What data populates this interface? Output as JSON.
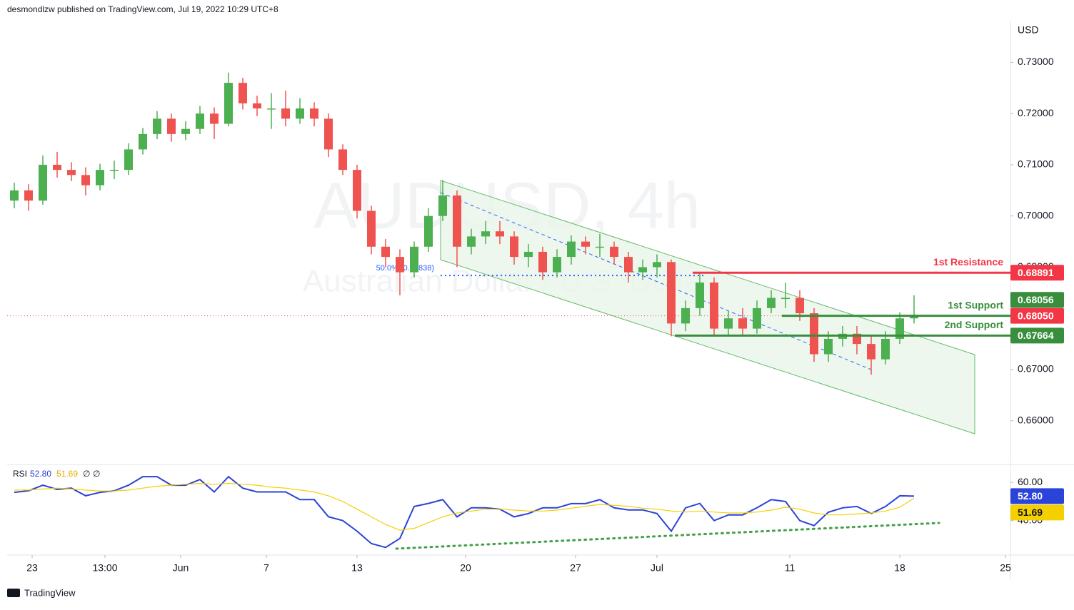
{
  "header": {
    "text": "desmondlzw published on TradingView.com, Jul 19, 2022 10:29 UTC+8"
  },
  "footer": {
    "brand": "TradingView"
  },
  "chart_data": [
    {
      "type": "candlestick",
      "title": "AUDUSD, 4h",
      "subtitle": "Australian Dollar / U.S. Dollar",
      "y_label": "USD",
      "up_color": "#4caf50",
      "down_color": "#ef5350",
      "open": [
        0.703,
        0.705,
        0.703,
        0.71,
        0.709,
        0.708,
        0.706,
        0.709,
        0.709,
        0.713,
        0.716,
        0.719,
        0.716,
        0.717,
        0.72,
        0.718,
        0.726,
        0.722,
        0.721,
        0.721,
        0.719,
        0.721,
        0.719,
        0.713,
        0.709,
        0.701,
        0.694,
        0.692,
        0.689,
        0.694,
        0.7,
        0.704,
        0.694,
        0.696,
        0.697,
        0.696,
        0.692,
        0.693,
        0.689,
        0.692,
        0.695,
        0.694,
        0.694,
        0.692,
        0.689,
        0.69,
        0.691,
        0.679,
        0.682,
        0.687,
        0.678,
        0.68,
        0.678,
        0.682,
        0.684,
        0.684,
        0.681,
        0.673,
        0.676,
        0.677,
        0.675,
        0.672,
        0.676,
        0.68
      ],
      "high": [
        0.7065,
        0.7062,
        0.7118,
        0.7125,
        0.7105,
        0.7095,
        0.7102,
        0.7108,
        0.7142,
        0.7172,
        0.7205,
        0.72,
        0.7185,
        0.7215,
        0.7212,
        0.728,
        0.727,
        0.7235,
        0.724,
        0.7245,
        0.723,
        0.7222,
        0.72,
        0.714,
        0.71,
        0.702,
        0.6955,
        0.6935,
        0.695,
        0.7015,
        0.707,
        0.705,
        0.6975,
        0.699,
        0.699,
        0.697,
        0.6945,
        0.694,
        0.6935,
        0.6962,
        0.696,
        0.6965,
        0.695,
        0.693,
        0.6915,
        0.6925,
        0.6915,
        0.6835,
        0.689,
        0.688,
        0.6815,
        0.682,
        0.6835,
        0.6855,
        0.687,
        0.6855,
        0.682,
        0.6775,
        0.6785,
        0.6785,
        0.6765,
        0.6775,
        0.6812,
        0.6845
      ],
      "low": [
        0.7015,
        0.701,
        0.7022,
        0.7075,
        0.7068,
        0.704,
        0.705,
        0.7072,
        0.708,
        0.712,
        0.715,
        0.7145,
        0.7148,
        0.716,
        0.715,
        0.7175,
        0.7208,
        0.7195,
        0.717,
        0.7175,
        0.718,
        0.7175,
        0.7115,
        0.708,
        0.6995,
        0.6925,
        0.69,
        0.6845,
        0.688,
        0.693,
        0.699,
        0.69,
        0.6925,
        0.6945,
        0.6945,
        0.6905,
        0.69,
        0.6875,
        0.688,
        0.6905,
        0.6925,
        0.692,
        0.6905,
        0.687,
        0.6875,
        0.688,
        0.6765,
        0.6775,
        0.6805,
        0.6765,
        0.6765,
        0.6765,
        0.677,
        0.681,
        0.682,
        0.6795,
        0.6715,
        0.6715,
        0.6745,
        0.673,
        0.669,
        0.671,
        0.675,
        0.679
      ],
      "close": [
        0.705,
        0.703,
        0.71,
        0.709,
        0.708,
        0.706,
        0.709,
        0.709,
        0.713,
        0.716,
        0.719,
        0.716,
        0.717,
        0.72,
        0.718,
        0.726,
        0.722,
        0.721,
        0.721,
        0.719,
        0.721,
        0.719,
        0.713,
        0.709,
        0.701,
        0.694,
        0.692,
        0.689,
        0.694,
        0.7,
        0.704,
        0.694,
        0.696,
        0.697,
        0.696,
        0.692,
        0.693,
        0.689,
        0.692,
        0.695,
        0.694,
        0.694,
        0.692,
        0.689,
        0.69,
        0.691,
        0.679,
        0.682,
        0.687,
        0.678,
        0.68,
        0.678,
        0.682,
        0.684,
        0.684,
        0.681,
        0.673,
        0.676,
        0.677,
        0.675,
        0.672,
        0.676,
        0.68,
        0.6805
      ],
      "xlim": [
        -0.5,
        69.75
      ],
      "xticks": [
        {
          "value": 1.25,
          "label": "23"
        },
        {
          "value": 6.35,
          "label": "13:00"
        },
        {
          "value": 11.65,
          "label": "Jun"
        },
        {
          "value": 17.65,
          "label": "7"
        },
        {
          "value": 24,
          "label": "13"
        },
        {
          "value": 31.6,
          "label": "20"
        },
        {
          "value": 39.3,
          "label": "27"
        },
        {
          "value": 45,
          "label": "Jul"
        },
        {
          "value": 54.3,
          "label": "11"
        },
        {
          "value": 62,
          "label": "18"
        },
        {
          "value": 69.4,
          "label": "25"
        }
      ],
      "ylim": [
        0.653,
        0.738
      ],
      "yticks": [
        {
          "value": 0.66,
          "label": "0.66000"
        },
        {
          "value": 0.67,
          "label": "0.67000"
        },
        {
          "value": 0.68,
          "label": "0.68000"
        },
        {
          "value": 0.69,
          "label": "0.69000"
        },
        {
          "value": 0.7,
          "label": "0.70000"
        },
        {
          "value": 0.71,
          "label": "0.71000"
        },
        {
          "value": 0.72,
          "label": "0.72000"
        },
        {
          "value": 0.73,
          "label": "0.73000"
        }
      ],
      "levels": [
        {
          "name": "1st Resistance",
          "value": 0.68891,
          "color": "#f23645"
        },
        {
          "name": "1st Support",
          "value": 0.6805,
          "color": "#388e3c"
        },
        {
          "name": "2nd Support",
          "value": 0.67664,
          "color": "#388e3c"
        }
      ],
      "price_tags": [
        {
          "value": 0.68891,
          "label": "0.68891",
          "color": "#f23645"
        },
        {
          "value": 0.6805,
          "label": "0.68050",
          "color": "#f23645"
        },
        {
          "value": 0.68056,
          "label": "0.68056",
          "color": "#388e3c"
        },
        {
          "value": 0.67664,
          "label": "0.67664",
          "color": "#388e3c"
        }
      ],
      "fib": {
        "label": "50.0% (0.68838)",
        "value": 0.68838
      }
    },
    {
      "type": "line",
      "title": "RSI",
      "series": [
        {
          "color": "#2a43d8",
          "values": [
            54.8,
            55.6,
            58.5,
            56.3,
            57,
            53,
            54.8,
            55.6,
            58.5,
            63,
            63,
            58.5,
            58.5,
            61.5,
            55,
            63,
            57,
            55,
            55,
            55,
            51,
            51,
            42,
            40,
            34.5,
            28,
            26,
            30.7,
            47.4,
            49,
            51,
            42,
            46.7,
            46.7,
            46,
            42,
            43.7,
            46.7,
            46.7,
            48.9,
            48.9,
            51,
            46.7,
            45.6,
            45.6,
            43.7,
            34.5,
            46.7,
            49,
            40,
            43,
            43,
            46.7,
            51,
            50,
            40,
            37.4,
            44.4,
            46.7,
            47.4,
            43.7,
            47.4,
            53,
            52.8
          ]
        },
        {
          "color": "#f5d000",
          "values": [
            56,
            56,
            56.5,
            57,
            56.5,
            56,
            55.5,
            55.5,
            56,
            57,
            58,
            58.5,
            59,
            59.5,
            59,
            59.5,
            59,
            58.5,
            57.5,
            57,
            56,
            55,
            53,
            50,
            46,
            42,
            38,
            35,
            36,
            39,
            42,
            44,
            45,
            46,
            46,
            45.5,
            45,
            45,
            45.5,
            46.5,
            47.5,
            48.5,
            48,
            47.5,
            46.5,
            46,
            45,
            44.5,
            45,
            44.5,
            44,
            44,
            44.5,
            45.5,
            47,
            46,
            44,
            43,
            43,
            43.5,
            44,
            45,
            47,
            51.69
          ]
        }
      ],
      "legend_values": [
        {
          "value": 52.8,
          "label": "52.80"
        },
        {
          "value": 51.69,
          "label": "51.69"
        }
      ],
      "legend_extra": [
        "∅",
        "∅"
      ],
      "ylim": [
        22,
        69
      ],
      "yticks": [
        {
          "value": 40,
          "label": "40.00"
        },
        {
          "value": 60,
          "label": "60.00"
        }
      ]
    }
  ]
}
